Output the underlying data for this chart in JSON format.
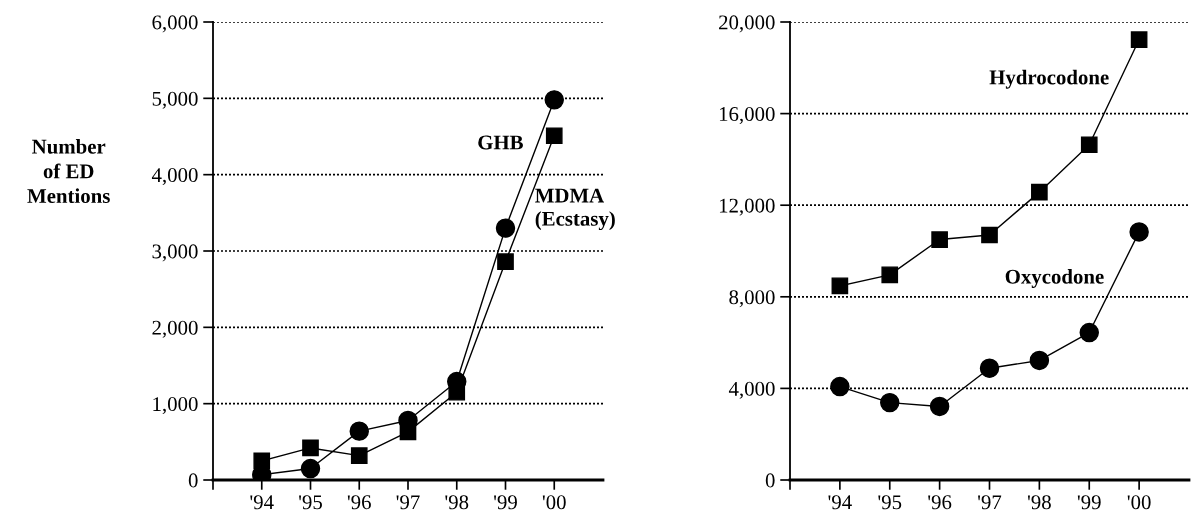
{
  "chart_data": [
    {
      "type": "line",
      "ylabel": "Number\nof ED\nMentions",
      "categories": [
        "'94",
        "'95",
        "'96",
        "'97",
        "'98",
        "'99",
        "'00"
      ],
      "ylim": [
        0,
        6000
      ],
      "yticks": [
        0,
        {
          "value": 1000,
          "label": "1,000"
        },
        {
          "value": 2000,
          "label": "2,000"
        },
        {
          "value": 3000,
          "label": "3,000"
        },
        {
          "value": 4000,
          "label": "4,000"
        },
        {
          "value": 5000,
          "label": "5,000"
        },
        {
          "value": 6000,
          "label": "6,000"
        }
      ],
      "grid": "y",
      "legend": false,
      "series": [
        {
          "name": "GHB",
          "color": "#000000",
          "marker": "circle",
          "values": [
            70,
            150,
            640,
            780,
            1290,
            3300,
            4980
          ]
        },
        {
          "name": "MDMA\n(Ecstasy)",
          "color": "#000000",
          "marker": "square",
          "values": [
            250,
            420,
            320,
            630,
            1150,
            2860,
            4510
          ]
        }
      ]
    },
    {
      "type": "line",
      "categories": [
        "'94",
        "'95",
        "'96",
        "'97",
        "'98",
        "'99",
        "'00"
      ],
      "ylim": [
        0,
        20000
      ],
      "yticks": [
        0,
        {
          "value": 4000,
          "label": "4,000"
        },
        {
          "value": 8000,
          "label": "8,000"
        },
        {
          "value": 12000,
          "label": "12,000"
        },
        {
          "value": 16000,
          "label": "16,000"
        },
        {
          "value": 20000,
          "label": "20,000"
        }
      ],
      "grid": "y",
      "legend": false,
      "series": [
        {
          "name": "Hydrocodone",
          "color": "#000000",
          "marker": "square",
          "values": [
            8480,
            8960,
            10500,
            10700,
            12570,
            14640,
            19230
          ]
        },
        {
          "name": "Oxycodone",
          "color": "#000000",
          "marker": "circle",
          "values": [
            4080,
            3380,
            3210,
            4880,
            5220,
            6440,
            10830
          ]
        }
      ]
    }
  ]
}
